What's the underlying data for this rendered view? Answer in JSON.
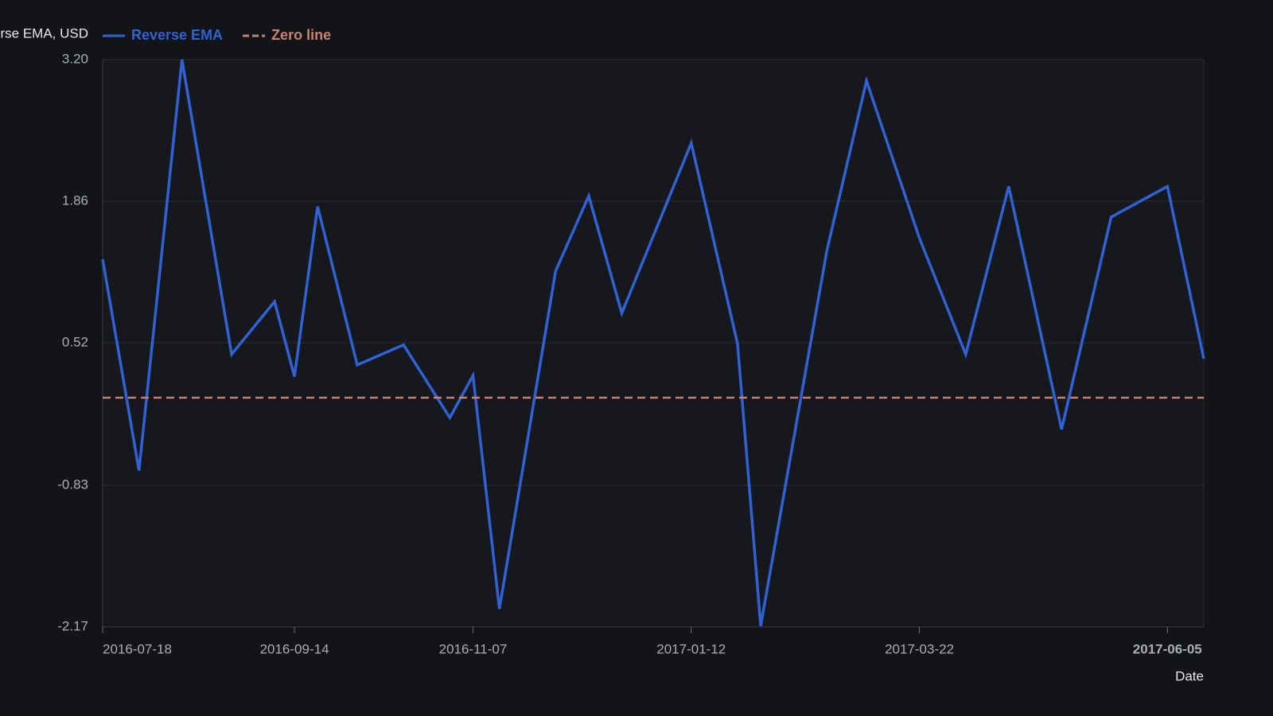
{
  "chart_data": {
    "type": "line",
    "y_label": "Reverse EMA, USD",
    "x_label": "Date",
    "x": [
      "2016-07-18",
      "2016-07-29",
      "2016-08-11",
      "2016-08-26",
      "2016-09-08",
      "2016-09-14",
      "2016-09-21",
      "2016-10-03",
      "2016-10-17",
      "2016-10-31",
      "2016-11-07",
      "2016-11-15",
      "2016-12-02",
      "2016-12-12",
      "2016-12-22",
      "2017-01-12",
      "2017-01-26",
      "2017-02-02",
      "2017-02-22",
      "2017-03-06",
      "2017-03-22",
      "2017-04-05",
      "2017-04-18",
      "2017-05-04",
      "2017-05-19",
      "2017-06-05",
      "2017-06-16"
    ],
    "series": [
      {
        "name": "Reverse EMA",
        "color": "#3062d4",
        "dash": false,
        "values": [
          1.31,
          -0.69,
          3.2,
          0.41,
          0.91,
          0.2,
          1.81,
          0.31,
          0.5,
          -0.19,
          0.21,
          -2.0,
          1.2,
          1.91,
          0.8,
          2.41,
          0.51,
          -2.16,
          1.39,
          3.0,
          1.51,
          0.41,
          2.0,
          -0.3,
          1.71,
          2.0,
          0.37
        ]
      },
      {
        "name": "Zero line",
        "color": "#c98270",
        "dash": true,
        "values": [
          0,
          0,
          0,
          0,
          0,
          0,
          0,
          0,
          0,
          0,
          0,
          0,
          0,
          0,
          0,
          0,
          0,
          0,
          0,
          0,
          0,
          0,
          0,
          0,
          0,
          0,
          0
        ]
      }
    ],
    "xlim": [
      "2016-07-18",
      "2017-06-16"
    ],
    "xticks": [
      "2016-07-18",
      "2016-09-14",
      "2016-11-07",
      "2017-01-12",
      "2017-03-22",
      "2017-06-05"
    ],
    "ylim": [
      -2.17,
      3.2
    ],
    "yticks": [
      -2.17,
      -0.83,
      0.52,
      1.86,
      {
        "value": 3.2,
        "label": "3.20"
      }
    ],
    "grid": true
  }
}
